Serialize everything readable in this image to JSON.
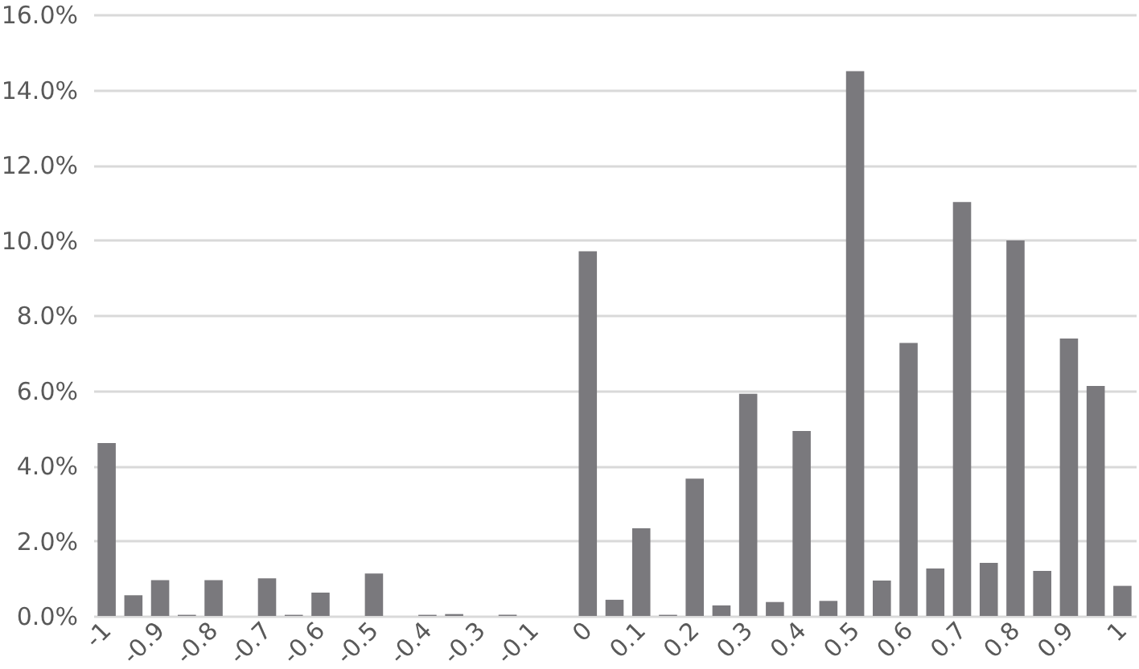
{
  "chart_data": {
    "type": "bar",
    "categories": [
      "-1",
      null,
      "-0.9",
      null,
      "-0.8",
      null,
      "-0.7",
      null,
      "-0.6",
      null,
      "-0.5",
      null,
      "-0.4",
      null,
      "-0.3",
      null,
      "-0.1",
      null,
      "0",
      null,
      "0.1",
      null,
      "0.2",
      null,
      "0.3",
      null,
      "0.4",
      null,
      "0.5",
      null,
      "0.6",
      null,
      "0.7",
      null,
      "0.8",
      null,
      "0.9",
      null,
      "1"
    ],
    "values": [
      4.6,
      0.55,
      0.95,
      0.03,
      0.95,
      0,
      1.0,
      0.03,
      0.62,
      0,
      1.13,
      0,
      0.03,
      0.05,
      0,
      0.03,
      0,
      0,
      9.7,
      0.43,
      2.33,
      0.03,
      3.65,
      0.28,
      5.91,
      0.37,
      4.92,
      0.4,
      14.49,
      0.94,
      7.26,
      1.26,
      11.01,
      1.41,
      9.99,
      1.2,
      7.38,
      6.12,
      0.8
    ],
    "color": "#7a797d",
    "ylim": [
      0,
      16
    ],
    "yticks": [
      {
        "value": 0,
        "label": "0.0%"
      },
      {
        "value": 2,
        "label": "2.0%"
      },
      {
        "value": 4,
        "label": "4.0%"
      },
      {
        "value": 6,
        "label": "6.0%"
      },
      {
        "value": 8,
        "label": "8.0%"
      },
      {
        "value": 10,
        "label": "10.0%"
      },
      {
        "value": 12,
        "label": "12.0%"
      },
      {
        "value": 14,
        "label": "14.0%"
      },
      {
        "value": 16,
        "label": "16.0%"
      }
    ],
    "grid": "y"
  }
}
